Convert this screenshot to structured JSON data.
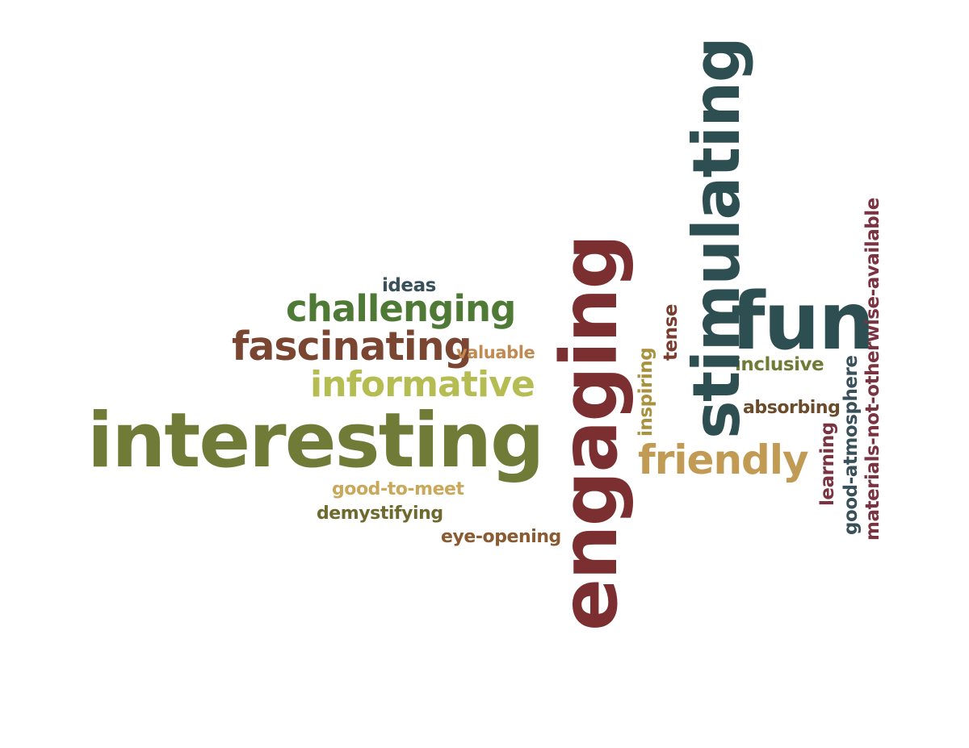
{
  "colors": {
    "olive": "#6f7b36",
    "green": "#4e7a35",
    "brown": "#7a4531",
    "maroon": "#7c2f30",
    "teal": "#2e4f52",
    "lime": "#b5bd52",
    "tan": "#c19a53",
    "dark_green": "#5e6b2a",
    "slate": "#37505a",
    "rust": "#9a5b3a",
    "dark_brown": "#6a4b2a",
    "plum": "#7a3340"
  },
  "words": [
    {
      "id": "interesting",
      "text": "interesting",
      "color": "#6f7b36"
    },
    {
      "id": "engaging",
      "text": "engaging",
      "color": "#7c2f30"
    },
    {
      "id": "stimulating",
      "text": "stimulating",
      "color": "#2e4f52"
    },
    {
      "id": "fun",
      "text": "fun",
      "color": "#2e4f52"
    },
    {
      "id": "challenging",
      "text": "challenging",
      "color": "#4e7a35"
    },
    {
      "id": "fascinating",
      "text": "fascinating",
      "color": "#7a4531"
    },
    {
      "id": "informative",
      "text": "informative",
      "color": "#b5bd52"
    },
    {
      "id": "friendly",
      "text": "friendly",
      "color": "#c19a53"
    },
    {
      "id": "ideas",
      "text": "ideas",
      "color": "#37505a"
    },
    {
      "id": "valuable",
      "text": "valuable",
      "color": "#c08a52"
    },
    {
      "id": "good-to-meet",
      "text": "good-to-meet",
      "color": "#c9a85a"
    },
    {
      "id": "demystifying",
      "text": "demystifying",
      "color": "#6e6a2e"
    },
    {
      "id": "eye-opening",
      "text": "eye-opening",
      "color": "#8a5a30"
    },
    {
      "id": "inclusive",
      "text": "inclusive",
      "color": "#6f7b36"
    },
    {
      "id": "absorbing",
      "text": "absorbing",
      "color": "#6a4b2a"
    },
    {
      "id": "inspiring",
      "text": "inspiring",
      "color": "#a8923f"
    },
    {
      "id": "tense",
      "text": "tense",
      "color": "#7a3c2e"
    },
    {
      "id": "learning",
      "text": "learning",
      "color": "#7a3340"
    },
    {
      "id": "good-atmosphere",
      "text": "good-atmosphere",
      "color": "#37505a"
    },
    {
      "id": "materials",
      "text": "materials-not-otherwise-available",
      "color": "#7a3340"
    }
  ]
}
